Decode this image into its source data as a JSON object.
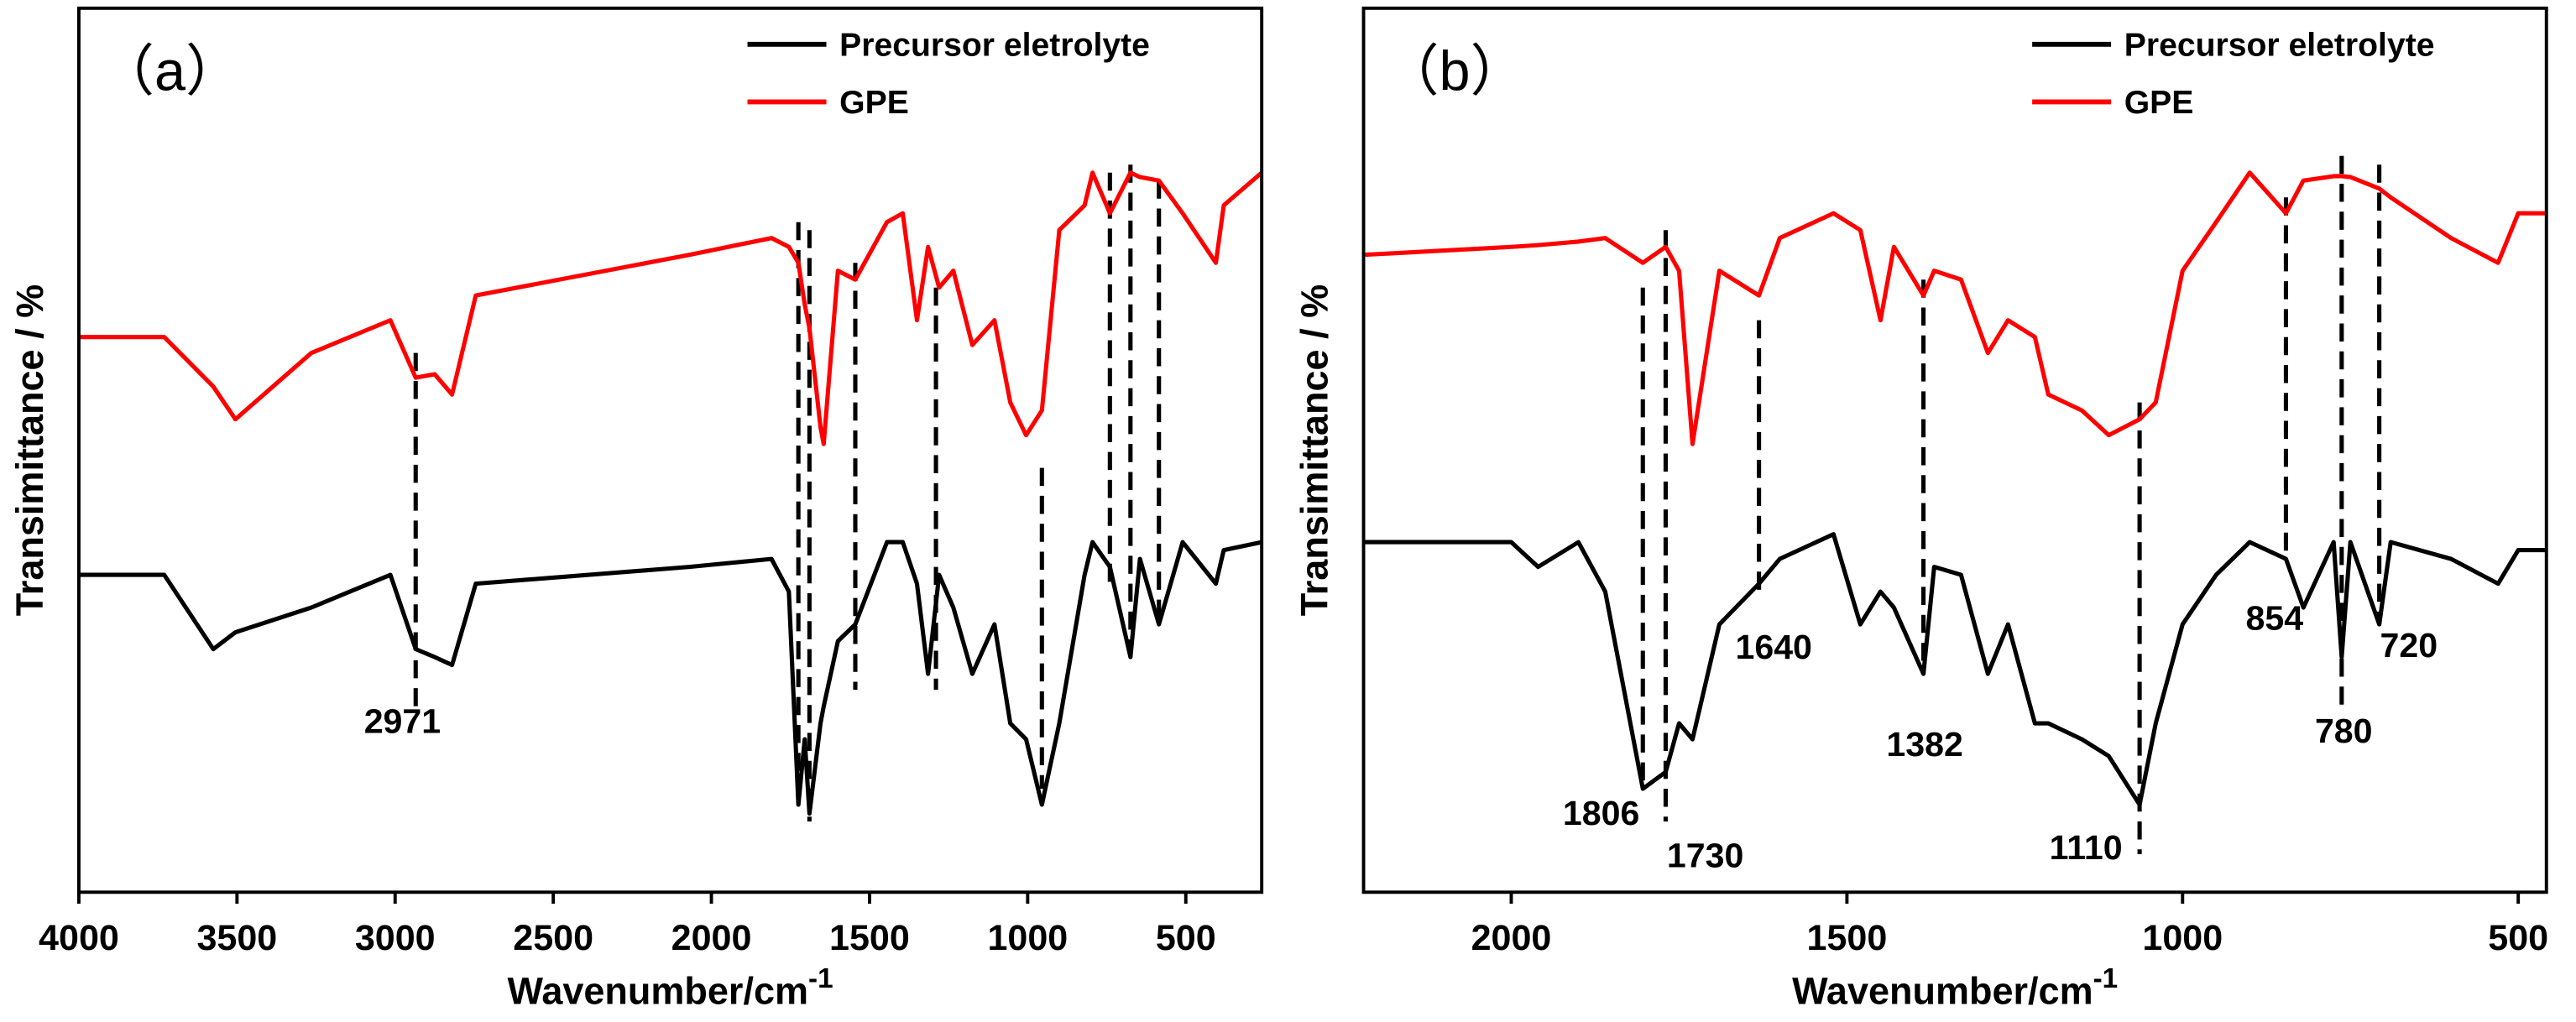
{
  "chart_data": [
    {
      "type": "line",
      "panel_label": "（a）",
      "xlabel": "Wavenumber/cm",
      "xlabel_superscript": "-1",
      "ylabel": "Transimittance / %",
      "xlim": [
        4000,
        260
      ],
      "ylim": [
        0,
        100
      ],
      "xticks": [
        4000,
        3500,
        3000,
        2500,
        2000,
        1500,
        1000,
        500
      ],
      "legend": "upper right",
      "x": [
        4000,
        3730,
        3575,
        3505,
        3265,
        3015,
        2935,
        2875,
        2820,
        2745,
        2070,
        1810,
        1755,
        1725,
        1705,
        1690,
        1655,
        1645,
        1600,
        1545,
        1445,
        1395,
        1350,
        1315,
        1280,
        1235,
        1175,
        1105,
        1055,
        1005,
        955,
        900,
        820,
        795,
        740,
        675,
        645,
        585,
        510,
        405,
        380,
        260
      ],
      "series": [
        {
          "name": "Precursor eletrolyte",
          "color": "#000000",
          "values": [
            35.9,
            35.9,
            27.5,
            29.4,
            32.2,
            35.9,
            27.5,
            26.6,
            25.7,
            34.9,
            36.8,
            37.7,
            34.0,
            9.9,
            17.3,
            8.9,
            19.1,
            21.0,
            28.4,
            30.3,
            39.6,
            39.6,
            34.9,
            24.7,
            35.9,
            32.2,
            24.7,
            30.3,
            19.1,
            17.3,
            9.9,
            19.1,
            35.9,
            39.6,
            36.8,
            26.6,
            37.7,
            30.3,
            39.6,
            34.9,
            38.7,
            39.6
          ]
        },
        {
          "name": "GPE",
          "color": "#ff0000",
          "values": [
            62.8,
            62.8,
            57.2,
            53.5,
            61.0,
            64.7,
            58.2,
            58.6,
            56.3,
            67.5,
            72.1,
            74.0,
            73.0,
            71.2,
            66.5,
            63.8,
            52.6,
            50.7,
            70.3,
            69.3,
            75.8,
            76.8,
            64.7,
            73.0,
            68.4,
            70.3,
            61.9,
            64.7,
            55.4,
            51.7,
            54.5,
            74.9,
            77.7,
            81.4,
            76.8,
            81.4,
            80.9,
            80.5,
            76.8,
            71.2,
            77.7,
            81.4
          ]
        }
      ],
      "peak_lines": [
        {
          "x": 2935,
          "y": [
            61.0,
            21.0
          ]
        },
        {
          "x": 1725,
          "y": [
            75.8,
            9.9
          ]
        },
        {
          "x": 1690,
          "y": [
            74.9,
            8.0
          ]
        },
        {
          "x": 1545,
          "y": [
            71.2,
            22.9
          ]
        },
        {
          "x": 1290,
          "y": [
            68.4,
            22.9
          ]
        },
        {
          "x": 955,
          "y": [
            48.0,
            11.7
          ]
        },
        {
          "x": 740,
          "y": [
            81.4,
            34.0
          ]
        },
        {
          "x": 675,
          "y": [
            82.3,
            26.6
          ]
        },
        {
          "x": 585,
          "y": [
            80.5,
            30.3
          ]
        }
      ],
      "annotations": [
        {
          "text": "2971",
          "x": 2977,
          "y": 19.5
        }
      ]
    },
    {
      "type": "line",
      "panel_label": "（b）",
      "xlabel": "Wavenumber/cm",
      "xlabel_superscript": "-1",
      "ylabel": "Transimittance / %",
      "xlim": [
        2220,
        458
      ],
      "ylim": [
        0,
        100
      ],
      "xticks": [
        2000,
        1500,
        1000,
        500
      ],
      "legend": "upper right",
      "x": [
        2220,
        2000,
        1960,
        1900,
        1860,
        1804,
        1770,
        1750,
        1730,
        1690,
        1631,
        1600,
        1520,
        1480,
        1450,
        1430,
        1386,
        1370,
        1330,
        1290,
        1260,
        1220,
        1200,
        1150,
        1110,
        1064,
        1040,
        1000,
        950,
        900,
        846,
        820,
        775,
        763,
        750,
        707,
        690,
        600,
        530,
        500,
        458
      ],
      "series": [
        {
          "name": "Precursor eletrolyte",
          "color": "#000000",
          "values": [
            39.6,
            39.6,
            36.8,
            39.6,
            34.0,
            11.7,
            13.6,
            19.1,
            17.3,
            30.3,
            34.9,
            37.7,
            40.5,
            30.3,
            34.0,
            32.2,
            24.7,
            36.8,
            35.9,
            24.7,
            30.3,
            19.1,
            19.1,
            17.3,
            15.4,
            9.9,
            19.1,
            30.3,
            35.9,
            39.6,
            37.7,
            32.2,
            39.6,
            26.6,
            39.6,
            30.3,
            39.6,
            37.7,
            34.9,
            38.7,
            38.7
          ]
        },
        {
          "name": "GPE",
          "color": "#ff0000",
          "values": [
            72.1,
            73.0,
            73.2,
            73.6,
            74.0,
            71.2,
            73.0,
            70.3,
            50.7,
            70.3,
            67.5,
            74.0,
            76.8,
            74.9,
            64.7,
            73.0,
            67.5,
            70.3,
            69.3,
            61.0,
            64.7,
            62.8,
            56.3,
            54.5,
            51.7,
            53.5,
            55.4,
            70.3,
            75.8,
            81.4,
            76.8,
            80.5,
            81.0,
            81.0,
            80.9,
            79.6,
            78.6,
            74.0,
            71.2,
            76.8,
            76.8
          ]
        }
      ],
      "peak_lines": [
        {
          "x": 1804,
          "y": [
            68.4,
            11.7
          ]
        },
        {
          "x": 1770,
          "y": [
            74.9,
            8.0
          ]
        },
        {
          "x": 1631,
          "y": [
            64.7,
            34.0
          ]
        },
        {
          "x": 1386,
          "y": [
            69.3,
            24.7
          ]
        },
        {
          "x": 1064,
          "y": [
            55.4,
            4.3
          ]
        },
        {
          "x": 846,
          "y": [
            78.6,
            37.7
          ]
        },
        {
          "x": 763,
          "y": [
            83.3,
            21.0
          ]
        },
        {
          "x": 707,
          "y": [
            82.3,
            30.3
          ]
        }
      ],
      "annotations": [
        {
          "text": "1806",
          "x": 1866,
          "y": 9.1
        },
        {
          "text": "1730",
          "x": 1711,
          "y": 4.3
        },
        {
          "text": "1640",
          "x": 1609,
          "y": 27.9
        },
        {
          "text": "1382",
          "x": 1384,
          "y": 16.9
        },
        {
          "text": "1110",
          "x": 1144,
          "y": 5.2
        },
        {
          "text": "854",
          "x": 863,
          "y": 31.2
        },
        {
          "text": "780",
          "x": 760,
          "y": 18.4
        },
        {
          "text": "720",
          "x": 663,
          "y": 28.1
        }
      ]
    }
  ]
}
